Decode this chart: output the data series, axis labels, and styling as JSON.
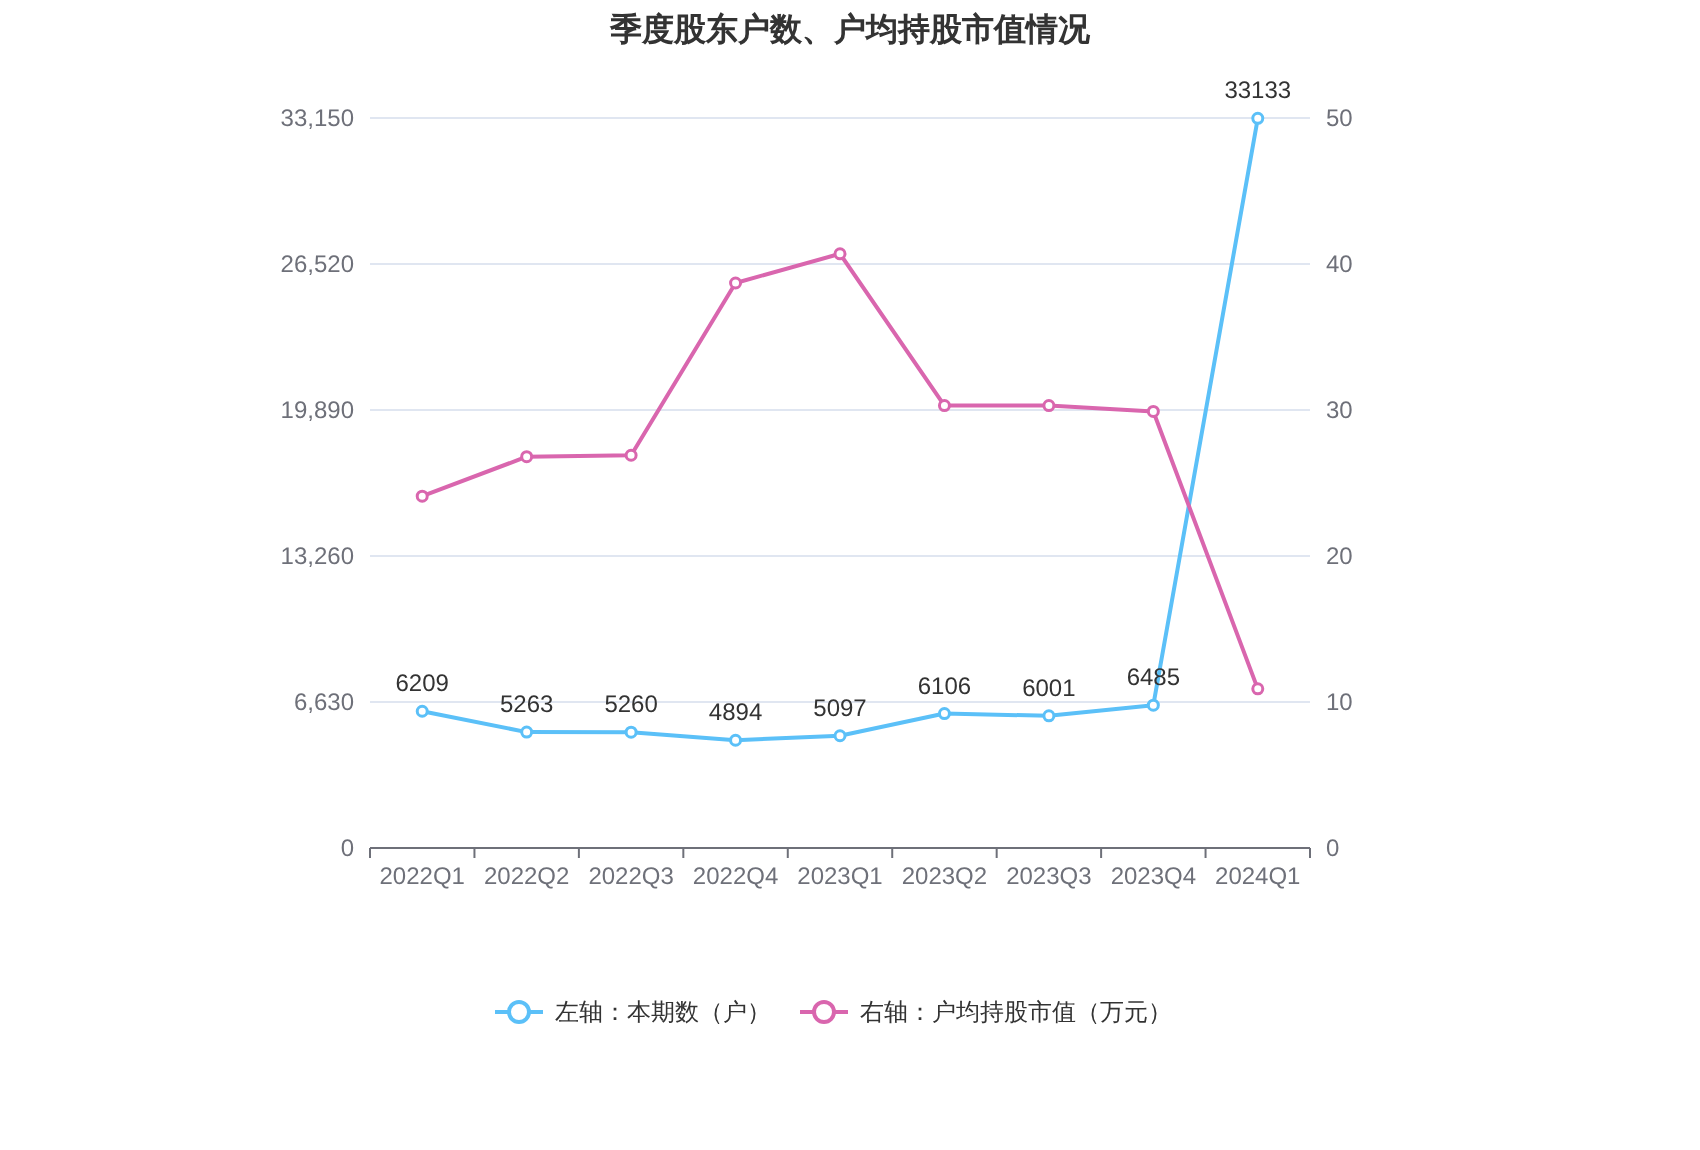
{
  "chart_data": {
    "type": "line",
    "title": "季度股东户数、户均持股市值情况",
    "categories": [
      "2022Q1",
      "2022Q2",
      "2022Q3",
      "2022Q4",
      "2023Q1",
      "2023Q2",
      "2023Q3",
      "2023Q4",
      "2024Q1"
    ],
    "series": [
      {
        "name": "左轴：本期数（户）",
        "color": "#5bc0f8",
        "values": [
          6209,
          5263,
          5260,
          4894,
          5097,
          6106,
          6001,
          6485,
          33133
        ],
        "data_labels": true
      },
      {
        "name": "右轴：户均持股市值（万元）",
        "color": "#d966ae",
        "axis": "y2",
        "values": [
          24.1,
          26.8,
          26.9,
          38.7,
          40.7,
          30.3,
          30.3,
          29.9,
          10.9
        ]
      }
    ],
    "ylim": [
      0,
      33150
    ],
    "yticks": [
      0,
      {
        "value": 6630,
        "label": "6,630"
      },
      {
        "value": 13260,
        "label": "13,260"
      },
      {
        "value": 19890,
        "label": "19,890"
      },
      {
        "value": 26520,
        "label": "26,520"
      },
      {
        "value": 33150,
        "label": "33,150"
      }
    ],
    "y2lim": [
      0,
      50
    ],
    "y2ticks": [
      0,
      10,
      20,
      30,
      40,
      50
    ],
    "grid": "y",
    "legend": "bottom",
    "marker": "circle",
    "line_style": "solid"
  }
}
